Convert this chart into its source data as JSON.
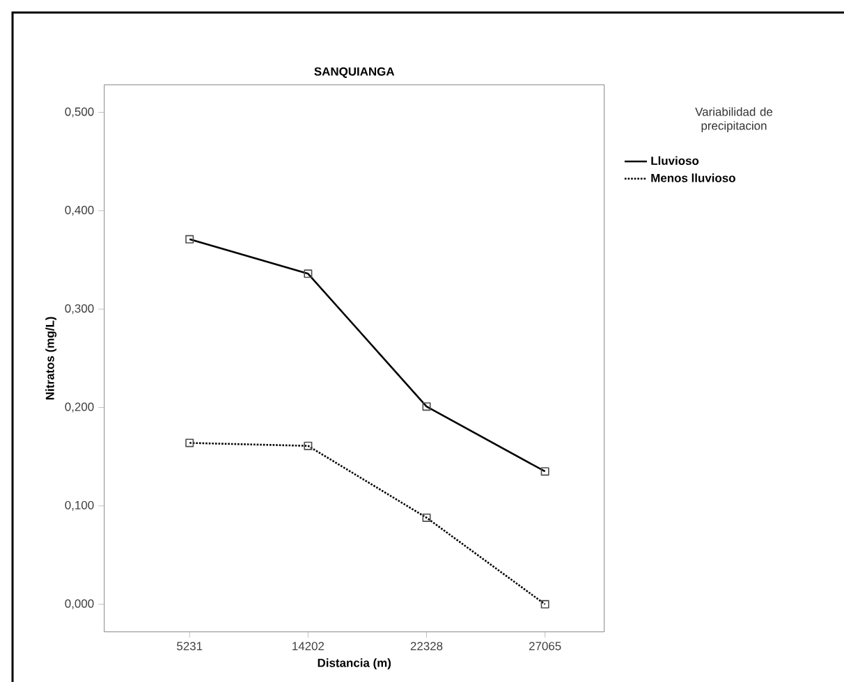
{
  "chart_data": {
    "type": "line",
    "title": "SANQUIANGA",
    "xlabel": "Distancia (m)",
    "ylabel": "Nitratos (mg/L)",
    "legend_title": "Variabilidad de precipitacion",
    "categories": [
      "5231",
      "14202",
      "22328",
      "27065"
    ],
    "series": [
      {
        "name": "Lluvioso",
        "color": "#000000",
        "line_style": "solid",
        "values": [
          0.371,
          0.336,
          0.201,
          0.135
        ]
      },
      {
        "name": "Menos lluvioso",
        "color": "#000000",
        "line_style": "dotted",
        "values": [
          0.164,
          0.161,
          0.088,
          0.0
        ]
      }
    ],
    "ylim": [
      -0.028,
      0.528
    ],
    "yticks": [
      {
        "value": 0,
        "label": "0,000"
      },
      {
        "value": 0.1,
        "label": "0,100"
      },
      {
        "value": 0.2,
        "label": "0,200"
      },
      {
        "value": 0.3,
        "label": "0,300"
      },
      {
        "value": 0.4,
        "label": "0,400"
      },
      {
        "value": 0.5,
        "label": "0,500"
      }
    ],
    "grid": false,
    "legend": "right",
    "marker": "square"
  }
}
